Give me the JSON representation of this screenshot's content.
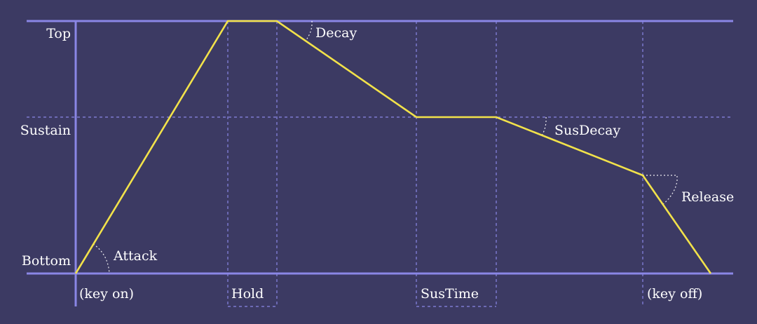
{
  "levels": {
    "top": "Top",
    "sustain": "Sustain",
    "bottom": "Bottom"
  },
  "phases": {
    "attack": "Attack",
    "decay": "Decay",
    "sus_decay": "SusDecay",
    "release": "Release"
  },
  "markers": {
    "key_on": "(key on)",
    "hold": "Hold",
    "sus_time": "SusTime",
    "key_off": "(key off)"
  },
  "colors": {
    "background": "#3c3a63",
    "axis": "#8a86e6",
    "envelope": "#f2e24a",
    "text": "#ffffff"
  }
}
